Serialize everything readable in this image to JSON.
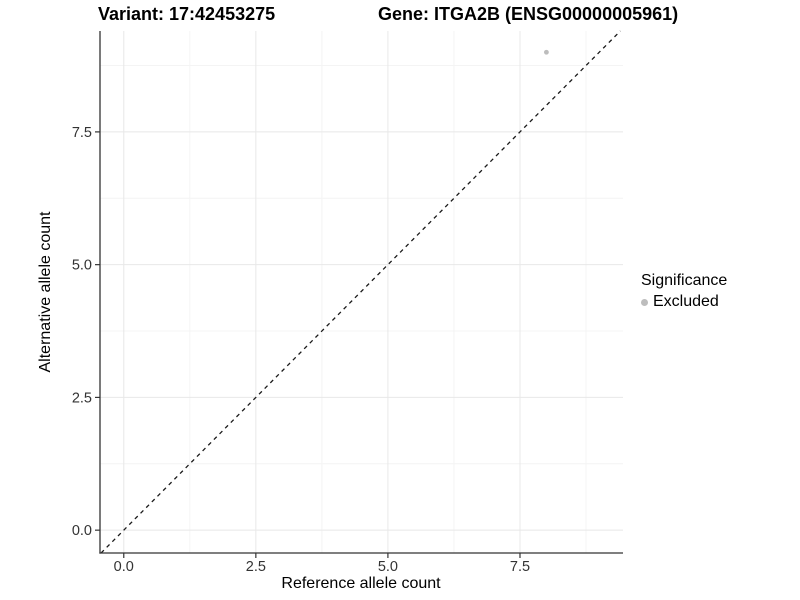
{
  "title": {
    "variant": "Variant: 17:42453275",
    "gene": "Gene: ITGA2B (ENSG00000005961)"
  },
  "axes": {
    "x_label": "Reference allele count",
    "y_label": "Alternative allele count"
  },
  "legend": {
    "title": "Significance",
    "items": [
      {
        "label": "Excluded",
        "color": "#bdbdbd",
        "marker": "circle-icon"
      }
    ]
  },
  "chart_data": {
    "type": "scatter",
    "title_left": "Variant: 17:42453275",
    "title_right": "Gene: ITGA2B (ENSG00000005961)",
    "xlabel": "Reference allele count",
    "ylabel": "Alternative allele count",
    "xlim": [
      -0.45,
      9.45
    ],
    "ylim": [
      -0.43,
      9.4
    ],
    "x_ticks": [
      0.0,
      2.5,
      5.0,
      7.5
    ],
    "y_ticks": [
      0.0,
      2.5,
      5.0,
      7.5
    ],
    "x_minor_ticks": [
      1.25,
      3.75,
      6.25,
      8.75
    ],
    "y_minor_ticks": [
      1.25,
      3.75,
      6.25,
      8.75
    ],
    "tick_label_decimals": 1,
    "grid": true,
    "legend_position": "right",
    "series": [
      {
        "name": "Excluded",
        "color": "#bdbdbd",
        "points": [
          {
            "x": 8,
            "y": 9
          }
        ]
      }
    ],
    "reference_line": {
      "kind": "identity",
      "slope": 1,
      "intercept": 0,
      "style": "dashed",
      "color": "#1a1a1a"
    }
  },
  "colors": {
    "background": "#ffffff",
    "grid_major": "#e8e8e8",
    "grid_minor": "#f4f4f4",
    "axis_line": "#333333",
    "tick_mark": "#333333",
    "tick_text": "#333333",
    "point": "#bdbdbd",
    "text": "#000000"
  }
}
